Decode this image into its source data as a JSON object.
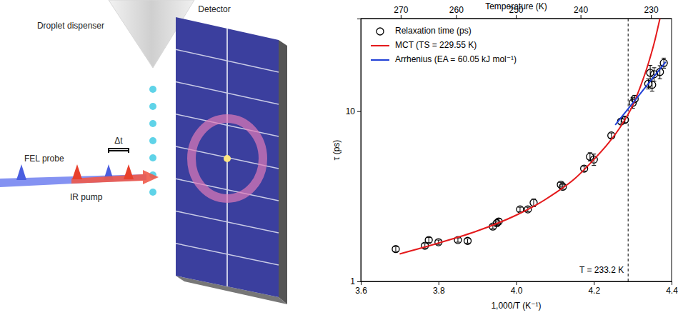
{
  "diagram": {
    "dispenser": "Droplet dispenser",
    "detector": "Detector",
    "probe": "FEL probe",
    "pump": "IR pump",
    "delay": "Δt"
  },
  "chart_data": {
    "type": "scatter",
    "xlabel": "1,000/T (K⁻¹)",
    "ylabel": "τ (ps)",
    "xlim": [
      3.6,
      4.4
    ],
    "xticks": [
      3.6,
      3.8,
      {
        "value": 4,
        "label": "4.0"
      },
      4.2,
      4.4
    ],
    "ylim": [
      1,
      35
    ],
    "yticks": [
      1,
      10
    ],
    "log": "y",
    "legend": "upper left",
    "top_axis": {
      "title": "Temperature (K)",
      "ticks": [
        270,
        260,
        250,
        240,
        230
      ]
    },
    "vline": {
      "temperature": 233.2,
      "label": "T = 233.2 K"
    },
    "series": [
      {
        "name": "Relaxation time (ps)",
        "type": "scatter",
        "marker": "circle",
        "color": "#000000",
        "x": [
          3.69,
          3.765,
          3.775,
          3.8,
          3.85,
          3.875,
          3.94,
          3.95,
          3.955,
          4.01,
          4.03,
          4.045,
          4.115,
          4.12,
          4.175,
          4.19,
          4.2,
          4.245,
          4.27,
          4.28,
          4.3,
          4.305,
          4.34,
          4.345,
          4.35,
          4.355,
          4.37,
          4.38
        ],
        "values": [
          1.55,
          1.62,
          1.75,
          1.7,
          1.75,
          1.73,
          2.1,
          2.2,
          2.25,
          2.65,
          2.65,
          2.9,
          3.7,
          3.6,
          4.6,
          5.4,
          5.2,
          7.2,
          8.7,
          8.9,
          11.2,
          11.8,
          14.5,
          16.8,
          14.3,
          16.5,
          17.0,
          19.2
        ],
        "errors": [
          0.05,
          0.05,
          0.06,
          0.05,
          0.05,
          0.05,
          0.06,
          0.07,
          0.08,
          0.08,
          0.08,
          0.15,
          0.12,
          0.12,
          0.15,
          0.3,
          0.4,
          0.25,
          0.3,
          0.35,
          0.8,
          0.6,
          1.0,
          1.8,
          1.2,
          1.5,
          1.5,
          1.3
        ]
      },
      {
        "name": "MCT (TS = 229.55 K)",
        "type": "line",
        "color": "#e41a1c",
        "x": [
          3.7,
          3.8,
          3.9,
          4.0,
          4.05,
          4.1,
          4.15,
          4.2,
          4.24,
          4.27,
          4.3,
          4.32,
          4.34,
          4.355,
          4.37
        ],
        "values": [
          1.45,
          1.68,
          1.98,
          2.45,
          2.8,
          3.3,
          4.0,
          5.2,
          6.6,
          8.2,
          10.8,
          14,
          19,
          25,
          35
        ]
      },
      {
        "name": "Arrhenius (EA = 60.05 kJ mol⁻¹)",
        "type": "line",
        "color": "#1f3fd6",
        "x": [
          4.255,
          4.385
        ],
        "values": [
          8.3,
          19.5
        ]
      }
    ]
  }
}
